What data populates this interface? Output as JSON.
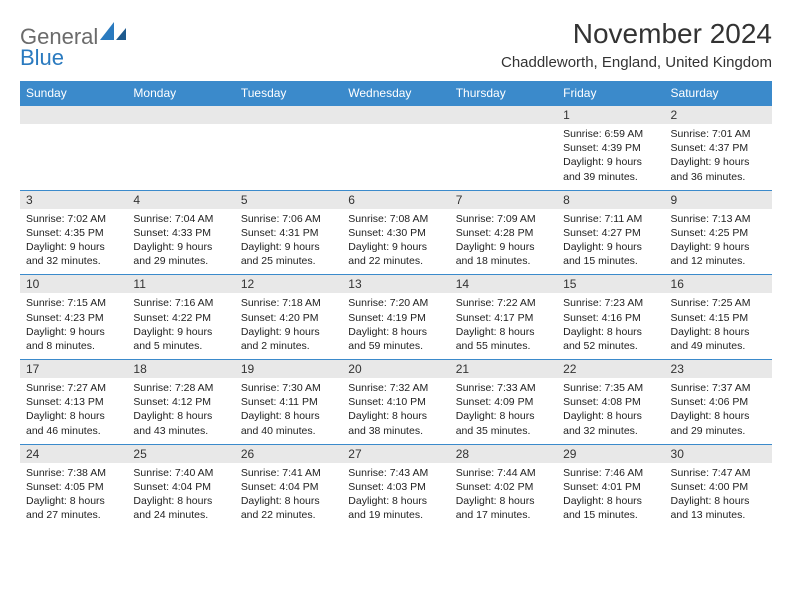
{
  "brand": {
    "text1": "General",
    "text2": "Blue"
  },
  "title": "November 2024",
  "location": "Chaddleworth, England, United Kingdom",
  "colors": {
    "header_bg": "#3b8acb",
    "header_text": "#ffffff",
    "daynum_bg": "#e8e8e8",
    "border": "#3b8acb",
    "logo_gray": "#6b6b6b",
    "logo_blue": "#2a7abf"
  },
  "day_headers": [
    "Sunday",
    "Monday",
    "Tuesday",
    "Wednesday",
    "Thursday",
    "Friday",
    "Saturday"
  ],
  "weeks": [
    [
      null,
      null,
      null,
      null,
      null,
      {
        "n": "1",
        "sr": "Sunrise: 6:59 AM",
        "ss": "Sunset: 4:39 PM",
        "d1": "Daylight: 9 hours",
        "d2": "and 39 minutes."
      },
      {
        "n": "2",
        "sr": "Sunrise: 7:01 AM",
        "ss": "Sunset: 4:37 PM",
        "d1": "Daylight: 9 hours",
        "d2": "and 36 minutes."
      }
    ],
    [
      {
        "n": "3",
        "sr": "Sunrise: 7:02 AM",
        "ss": "Sunset: 4:35 PM",
        "d1": "Daylight: 9 hours",
        "d2": "and 32 minutes."
      },
      {
        "n": "4",
        "sr": "Sunrise: 7:04 AM",
        "ss": "Sunset: 4:33 PM",
        "d1": "Daylight: 9 hours",
        "d2": "and 29 minutes."
      },
      {
        "n": "5",
        "sr": "Sunrise: 7:06 AM",
        "ss": "Sunset: 4:31 PM",
        "d1": "Daylight: 9 hours",
        "d2": "and 25 minutes."
      },
      {
        "n": "6",
        "sr": "Sunrise: 7:08 AM",
        "ss": "Sunset: 4:30 PM",
        "d1": "Daylight: 9 hours",
        "d2": "and 22 minutes."
      },
      {
        "n": "7",
        "sr": "Sunrise: 7:09 AM",
        "ss": "Sunset: 4:28 PM",
        "d1": "Daylight: 9 hours",
        "d2": "and 18 minutes."
      },
      {
        "n": "8",
        "sr": "Sunrise: 7:11 AM",
        "ss": "Sunset: 4:27 PM",
        "d1": "Daylight: 9 hours",
        "d2": "and 15 minutes."
      },
      {
        "n": "9",
        "sr": "Sunrise: 7:13 AM",
        "ss": "Sunset: 4:25 PM",
        "d1": "Daylight: 9 hours",
        "d2": "and 12 minutes."
      }
    ],
    [
      {
        "n": "10",
        "sr": "Sunrise: 7:15 AM",
        "ss": "Sunset: 4:23 PM",
        "d1": "Daylight: 9 hours",
        "d2": "and 8 minutes."
      },
      {
        "n": "11",
        "sr": "Sunrise: 7:16 AM",
        "ss": "Sunset: 4:22 PM",
        "d1": "Daylight: 9 hours",
        "d2": "and 5 minutes."
      },
      {
        "n": "12",
        "sr": "Sunrise: 7:18 AM",
        "ss": "Sunset: 4:20 PM",
        "d1": "Daylight: 9 hours",
        "d2": "and 2 minutes."
      },
      {
        "n": "13",
        "sr": "Sunrise: 7:20 AM",
        "ss": "Sunset: 4:19 PM",
        "d1": "Daylight: 8 hours",
        "d2": "and 59 minutes."
      },
      {
        "n": "14",
        "sr": "Sunrise: 7:22 AM",
        "ss": "Sunset: 4:17 PM",
        "d1": "Daylight: 8 hours",
        "d2": "and 55 minutes."
      },
      {
        "n": "15",
        "sr": "Sunrise: 7:23 AM",
        "ss": "Sunset: 4:16 PM",
        "d1": "Daylight: 8 hours",
        "d2": "and 52 minutes."
      },
      {
        "n": "16",
        "sr": "Sunrise: 7:25 AM",
        "ss": "Sunset: 4:15 PM",
        "d1": "Daylight: 8 hours",
        "d2": "and 49 minutes."
      }
    ],
    [
      {
        "n": "17",
        "sr": "Sunrise: 7:27 AM",
        "ss": "Sunset: 4:13 PM",
        "d1": "Daylight: 8 hours",
        "d2": "and 46 minutes."
      },
      {
        "n": "18",
        "sr": "Sunrise: 7:28 AM",
        "ss": "Sunset: 4:12 PM",
        "d1": "Daylight: 8 hours",
        "d2": "and 43 minutes."
      },
      {
        "n": "19",
        "sr": "Sunrise: 7:30 AM",
        "ss": "Sunset: 4:11 PM",
        "d1": "Daylight: 8 hours",
        "d2": "and 40 minutes."
      },
      {
        "n": "20",
        "sr": "Sunrise: 7:32 AM",
        "ss": "Sunset: 4:10 PM",
        "d1": "Daylight: 8 hours",
        "d2": "and 38 minutes."
      },
      {
        "n": "21",
        "sr": "Sunrise: 7:33 AM",
        "ss": "Sunset: 4:09 PM",
        "d1": "Daylight: 8 hours",
        "d2": "and 35 minutes."
      },
      {
        "n": "22",
        "sr": "Sunrise: 7:35 AM",
        "ss": "Sunset: 4:08 PM",
        "d1": "Daylight: 8 hours",
        "d2": "and 32 minutes."
      },
      {
        "n": "23",
        "sr": "Sunrise: 7:37 AM",
        "ss": "Sunset: 4:06 PM",
        "d1": "Daylight: 8 hours",
        "d2": "and 29 minutes."
      }
    ],
    [
      {
        "n": "24",
        "sr": "Sunrise: 7:38 AM",
        "ss": "Sunset: 4:05 PM",
        "d1": "Daylight: 8 hours",
        "d2": "and 27 minutes."
      },
      {
        "n": "25",
        "sr": "Sunrise: 7:40 AM",
        "ss": "Sunset: 4:04 PM",
        "d1": "Daylight: 8 hours",
        "d2": "and 24 minutes."
      },
      {
        "n": "26",
        "sr": "Sunrise: 7:41 AM",
        "ss": "Sunset: 4:04 PM",
        "d1": "Daylight: 8 hours",
        "d2": "and 22 minutes."
      },
      {
        "n": "27",
        "sr": "Sunrise: 7:43 AM",
        "ss": "Sunset: 4:03 PM",
        "d1": "Daylight: 8 hours",
        "d2": "and 19 minutes."
      },
      {
        "n": "28",
        "sr": "Sunrise: 7:44 AM",
        "ss": "Sunset: 4:02 PM",
        "d1": "Daylight: 8 hours",
        "d2": "and 17 minutes."
      },
      {
        "n": "29",
        "sr": "Sunrise: 7:46 AM",
        "ss": "Sunset: 4:01 PM",
        "d1": "Daylight: 8 hours",
        "d2": "and 15 minutes."
      },
      {
        "n": "30",
        "sr": "Sunrise: 7:47 AM",
        "ss": "Sunset: 4:00 PM",
        "d1": "Daylight: 8 hours",
        "d2": "and 13 minutes."
      }
    ]
  ]
}
